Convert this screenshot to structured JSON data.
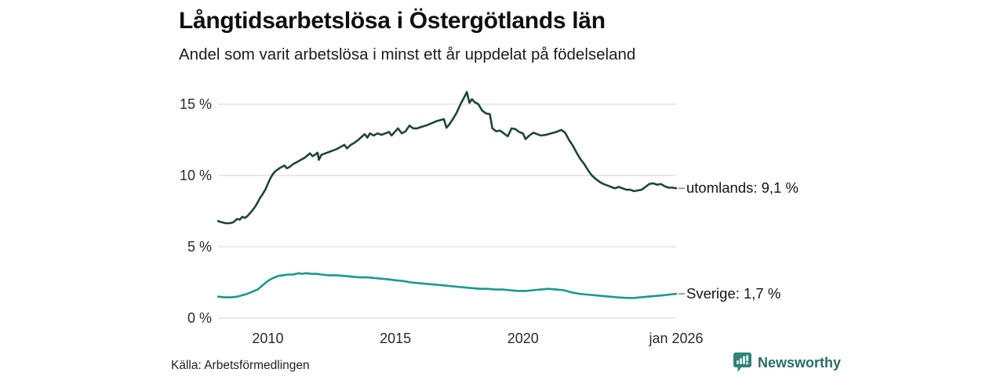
{
  "header": {
    "title": "Långtidsarbetslösa i Östergötlands län",
    "subtitle": "Andel som varit arbetslösa i minst ett år uppdelat på födelseland"
  },
  "chart_data": {
    "type": "line",
    "title": "Långtidsarbetslösa i Östergötlands län",
    "subtitle": "Andel som varit arbetslösa i minst ett år uppdelat på födelseland",
    "x_unit": "year (monthly observations)",
    "x_range": [
      2008.05,
      2026.0
    ],
    "y_range": [
      0,
      15
    ],
    "grid": true,
    "legend_position": "end-of-line labels, right side",
    "colors": {
      "gridline": "#dddddd",
      "connector_dash": "#8a8a8a",
      "axis_text": "#2a2a2a"
    },
    "y_ticks": [
      {
        "label": "0 %",
        "value": 0
      },
      {
        "label": "5 %",
        "value": 5
      },
      {
        "label": "10 %",
        "value": 10
      },
      {
        "label": "15 %",
        "value": 15
      }
    ],
    "x_ticks": [
      {
        "label": "2010",
        "year": 2010
      },
      {
        "label": "2015",
        "year": 2015
      },
      {
        "label": "2020",
        "year": 2020
      },
      {
        "label": "jan 2026",
        "year": 2026
      }
    ],
    "series": [
      {
        "name": "utomlands",
        "end_label": "utomlands: 9,1 %",
        "end_value_pct": 9.1,
        "color": "#1e4637",
        "points": [
          [
            2008.05,
            6.8
          ],
          [
            2008.2,
            6.72
          ],
          [
            2008.35,
            6.65
          ],
          [
            2008.5,
            6.65
          ],
          [
            2008.65,
            6.72
          ],
          [
            2008.8,
            6.95
          ],
          [
            2008.9,
            6.9
          ],
          [
            2009.0,
            7.1
          ],
          [
            2009.1,
            7.02
          ],
          [
            2009.2,
            7.15
          ],
          [
            2009.35,
            7.45
          ],
          [
            2009.5,
            7.8
          ],
          [
            2009.6,
            8.1
          ],
          [
            2009.7,
            8.45
          ],
          [
            2009.8,
            8.7
          ],
          [
            2009.9,
            9.0
          ],
          [
            2010.0,
            9.4
          ],
          [
            2010.1,
            9.8
          ],
          [
            2010.2,
            10.1
          ],
          [
            2010.3,
            10.3
          ],
          [
            2010.45,
            10.5
          ],
          [
            2010.55,
            10.6
          ],
          [
            2010.65,
            10.7
          ],
          [
            2010.75,
            10.5
          ],
          [
            2010.85,
            10.6
          ],
          [
            2011.0,
            10.8
          ],
          [
            2011.15,
            10.95
          ],
          [
            2011.3,
            11.1
          ],
          [
            2011.45,
            11.25
          ],
          [
            2011.55,
            11.4
          ],
          [
            2011.65,
            11.55
          ],
          [
            2011.75,
            11.35
          ],
          [
            2011.85,
            11.45
          ],
          [
            2011.95,
            11.6
          ],
          [
            2012.0,
            11.1
          ],
          [
            2012.1,
            11.45
          ],
          [
            2012.25,
            11.55
          ],
          [
            2012.4,
            11.65
          ],
          [
            2012.55,
            11.75
          ],
          [
            2012.7,
            11.85
          ],
          [
            2012.85,
            12.0
          ],
          [
            2013.0,
            12.15
          ],
          [
            2013.1,
            11.9
          ],
          [
            2013.25,
            12.15
          ],
          [
            2013.4,
            12.3
          ],
          [
            2013.55,
            12.5
          ],
          [
            2013.7,
            12.75
          ],
          [
            2013.8,
            12.9
          ],
          [
            2013.9,
            12.65
          ],
          [
            2014.0,
            12.95
          ],
          [
            2014.15,
            12.8
          ],
          [
            2014.3,
            12.95
          ],
          [
            2014.45,
            12.85
          ],
          [
            2014.6,
            12.95
          ],
          [
            2014.75,
            13.05
          ],
          [
            2014.85,
            12.8
          ],
          [
            2015.0,
            13.1
          ],
          [
            2015.1,
            13.3
          ],
          [
            2015.25,
            12.95
          ],
          [
            2015.4,
            13.1
          ],
          [
            2015.55,
            13.5
          ],
          [
            2015.7,
            13.3
          ],
          [
            2015.85,
            13.3
          ],
          [
            2016.0,
            13.4
          ],
          [
            2016.2,
            13.5
          ],
          [
            2016.4,
            13.65
          ],
          [
            2016.6,
            13.8
          ],
          [
            2016.8,
            13.9
          ],
          [
            2016.9,
            13.95
          ],
          [
            2017.0,
            13.35
          ],
          [
            2017.1,
            13.55
          ],
          [
            2017.25,
            13.95
          ],
          [
            2017.4,
            14.4
          ],
          [
            2017.55,
            15.0
          ],
          [
            2017.7,
            15.5
          ],
          [
            2017.8,
            15.85
          ],
          [
            2017.9,
            15.1
          ],
          [
            2018.0,
            15.35
          ],
          [
            2018.1,
            15.15
          ],
          [
            2018.25,
            15.0
          ],
          [
            2018.4,
            14.55
          ],
          [
            2018.55,
            14.35
          ],
          [
            2018.7,
            14.3
          ],
          [
            2018.8,
            13.3
          ],
          [
            2018.95,
            13.1
          ],
          [
            2019.1,
            13.15
          ],
          [
            2019.25,
            12.95
          ],
          [
            2019.4,
            12.75
          ],
          [
            2019.55,
            13.3
          ],
          [
            2019.7,
            13.25
          ],
          [
            2019.85,
            13.05
          ],
          [
            2020.0,
            12.95
          ],
          [
            2020.1,
            12.55
          ],
          [
            2020.25,
            12.8
          ],
          [
            2020.4,
            13.0
          ],
          [
            2020.55,
            12.9
          ],
          [
            2020.7,
            12.8
          ],
          [
            2020.9,
            12.85
          ],
          [
            2021.1,
            12.95
          ],
          [
            2021.3,
            13.05
          ],
          [
            2021.5,
            13.2
          ],
          [
            2021.65,
            13.0
          ],
          [
            2021.8,
            12.5
          ],
          [
            2021.95,
            12.1
          ],
          [
            2022.1,
            11.6
          ],
          [
            2022.25,
            11.15
          ],
          [
            2022.4,
            10.8
          ],
          [
            2022.55,
            10.35
          ],
          [
            2022.7,
            10.0
          ],
          [
            2022.85,
            9.75
          ],
          [
            2023.0,
            9.55
          ],
          [
            2023.15,
            9.4
          ],
          [
            2023.3,
            9.3
          ],
          [
            2023.45,
            9.2
          ],
          [
            2023.6,
            9.1
          ],
          [
            2023.75,
            9.2
          ],
          [
            2023.9,
            9.1
          ],
          [
            2024.05,
            9.0
          ],
          [
            2024.2,
            9.0
          ],
          [
            2024.35,
            8.9
          ],
          [
            2024.5,
            8.95
          ],
          [
            2024.65,
            9.0
          ],
          [
            2024.8,
            9.2
          ],
          [
            2024.95,
            9.4
          ],
          [
            2025.1,
            9.45
          ],
          [
            2025.25,
            9.35
          ],
          [
            2025.4,
            9.4
          ],
          [
            2025.55,
            9.25
          ],
          [
            2025.7,
            9.15
          ],
          [
            2025.85,
            9.15
          ],
          [
            2026.0,
            9.1
          ]
        ]
      },
      {
        "name": "Sverige",
        "end_label": "Sverige: 1,7 %",
        "end_value_pct": 1.7,
        "color": "#169b8c",
        "points": [
          [
            2008.05,
            1.5
          ],
          [
            2008.3,
            1.45
          ],
          [
            2008.55,
            1.45
          ],
          [
            2008.8,
            1.5
          ],
          [
            2009.0,
            1.6
          ],
          [
            2009.2,
            1.7
          ],
          [
            2009.4,
            1.85
          ],
          [
            2009.6,
            2.0
          ],
          [
            2009.8,
            2.3
          ],
          [
            2010.0,
            2.6
          ],
          [
            2010.2,
            2.8
          ],
          [
            2010.4,
            2.95
          ],
          [
            2010.6,
            3.0
          ],
          [
            2010.8,
            3.05
          ],
          [
            2011.0,
            3.05
          ],
          [
            2011.2,
            3.15
          ],
          [
            2011.35,
            3.1
          ],
          [
            2011.5,
            3.15
          ],
          [
            2011.7,
            3.1
          ],
          [
            2011.9,
            3.1
          ],
          [
            2012.1,
            3.05
          ],
          [
            2012.4,
            3.0
          ],
          [
            2012.7,
            3.0
          ],
          [
            2013.0,
            2.95
          ],
          [
            2013.3,
            2.9
          ],
          [
            2013.6,
            2.85
          ],
          [
            2013.9,
            2.85
          ],
          [
            2014.2,
            2.8
          ],
          [
            2014.5,
            2.75
          ],
          [
            2014.8,
            2.7
          ],
          [
            2015.0,
            2.65
          ],
          [
            2015.3,
            2.6
          ],
          [
            2015.6,
            2.5
          ],
          [
            2015.9,
            2.45
          ],
          [
            2016.2,
            2.4
          ],
          [
            2016.5,
            2.35
          ],
          [
            2016.8,
            2.3
          ],
          [
            2017.1,
            2.25
          ],
          [
            2017.4,
            2.2
          ],
          [
            2017.7,
            2.15
          ],
          [
            2018.0,
            2.1
          ],
          [
            2018.3,
            2.05
          ],
          [
            2018.6,
            2.05
          ],
          [
            2018.9,
            2.0
          ],
          [
            2019.2,
            2.0
          ],
          [
            2019.5,
            1.95
          ],
          [
            2019.8,
            1.9
          ],
          [
            2020.1,
            1.9
          ],
          [
            2020.4,
            1.95
          ],
          [
            2020.7,
            2.0
          ],
          [
            2021.0,
            2.05
          ],
          [
            2021.3,
            2.0
          ],
          [
            2021.6,
            1.95
          ],
          [
            2021.9,
            1.8
          ],
          [
            2022.2,
            1.7
          ],
          [
            2022.5,
            1.65
          ],
          [
            2022.8,
            1.6
          ],
          [
            2023.1,
            1.55
          ],
          [
            2023.4,
            1.5
          ],
          [
            2023.7,
            1.45
          ],
          [
            2024.0,
            1.42
          ],
          [
            2024.3,
            1.4
          ],
          [
            2024.6,
            1.45
          ],
          [
            2024.9,
            1.5
          ],
          [
            2025.2,
            1.55
          ],
          [
            2025.5,
            1.6
          ],
          [
            2025.75,
            1.65
          ],
          [
            2026.0,
            1.7
          ]
        ]
      }
    ]
  },
  "footer": {
    "source": "Källa: Arbetsförmedlingen"
  },
  "brand": {
    "name": "Newsworthy",
    "icon": "newsworthy-bar-chart-bubble-icon",
    "icon_color": "#31827a",
    "text_color": "#2a6e67"
  }
}
